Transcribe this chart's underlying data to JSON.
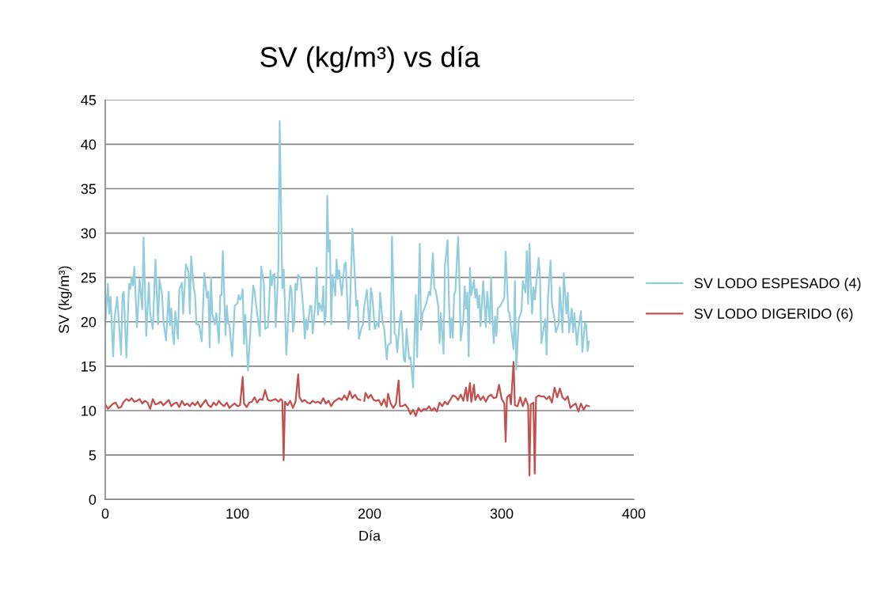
{
  "chart_data": {
    "type": "line",
    "title": "SV (kg/m³) vs día",
    "xlabel": "Día",
    "ylabel": "SV (kg/m³)",
    "xlim": [
      0,
      400
    ],
    "xticks": [
      0,
      100,
      200,
      300,
      400
    ],
    "ylim": [
      0,
      45
    ],
    "yticks": [
      0,
      5,
      10,
      15,
      20,
      25,
      30,
      35,
      40,
      45
    ],
    "grid": "y",
    "legend": "right",
    "series": [
      {
        "name": "SV LODO ESPESADO (4)",
        "color": "#93cddd",
        "x": [
          0,
          2,
          3,
          4,
          6,
          7,
          9,
          12,
          13,
          14,
          16,
          18,
          19,
          20,
          21,
          22,
          24,
          26,
          28,
          29,
          31,
          33,
          34,
          36,
          38,
          40,
          41,
          43,
          44,
          46,
          48,
          49,
          50,
          51,
          52,
          53,
          55,
          56,
          58,
          59,
          61,
          63,
          64,
          65,
          67,
          68,
          69,
          71,
          73,
          75,
          77,
          78,
          79,
          80,
          81,
          83,
          84,
          85,
          86,
          87,
          88,
          89,
          91,
          92,
          93,
          94,
          96,
          98,
          100,
          101,
          102,
          103,
          104,
          105,
          106,
          108,
          110,
          112,
          113,
          115,
          117,
          118,
          120,
          121,
          123,
          124,
          125,
          126,
          127,
          128,
          129,
          130,
          131,
          132,
          134,
          135,
          136,
          137,
          139,
          140,
          141,
          142,
          143,
          144,
          145,
          146,
          148,
          150,
          151,
          152,
          153,
          155,
          156,
          157,
          159,
          160,
          161,
          162,
          164,
          165,
          166,
          167,
          168,
          169,
          170,
          171,
          172,
          174,
          175,
          176,
          177,
          179,
          181,
          182,
          184,
          185,
          187,
          188,
          190,
          191,
          192,
          194,
          195,
          196,
          198,
          200,
          201,
          202,
          204,
          206,
          207,
          208,
          210,
          211,
          213,
          214,
          216,
          217,
          219,
          220,
          221,
          223,
          224,
          226,
          227,
          228,
          230,
          231,
          233,
          234,
          235,
          236,
          238,
          239,
          240,
          243,
          245,
          246,
          248,
          249,
          250,
          252,
          253,
          254,
          256,
          257,
          259,
          260,
          261,
          262,
          263,
          264,
          265,
          267,
          268,
          269,
          271,
          272,
          273,
          274,
          275,
          276,
          277,
          279,
          280,
          281,
          282,
          283,
          284,
          286,
          288,
          289,
          291,
          292,
          293,
          294,
          295,
          296,
          297,
          299,
          300,
          302,
          303,
          305,
          306,
          307,
          309,
          310,
          311,
          313,
          315,
          316,
          318,
          319,
          320,
          321,
          322,
          323,
          324,
          325,
          328,
          329,
          330,
          332,
          333,
          334,
          335,
          337,
          338,
          340,
          341,
          343,
          344,
          346,
          347,
          349,
          350,
          351,
          353,
          354,
          355,
          357,
          358,
          360,
          361,
          363,
          364,
          365,
          366
        ],
        "values": [
          19.6,
          24.3,
          20.9,
          22.8,
          16.1,
          20.3,
          22.8,
          16.3,
          23,
          23.4,
          16,
          24.3,
          23.7,
          25,
          24.1,
          26.2,
          19.4,
          24.8,
          21.4,
          29.5,
          18.4,
          24.4,
          20.9,
          19.2,
          27,
          19.7,
          24.8,
          23.1,
          20.1,
          17.9,
          23.4,
          19.6,
          21.5,
          18.7,
          17.5,
          21.2,
          18.1,
          23.6,
          24.4,
          20.9,
          26.5,
          25.6,
          20.9,
          27.4,
          23.8,
          23,
          19.7,
          19.7,
          17.8,
          25.5,
          22.7,
          23.4,
          17.1,
          25,
          20.9,
          19.7,
          21,
          19.4,
          17.6,
          23,
          23,
          28,
          18.5,
          21.8,
          19.8,
          19.7,
          16.1,
          21.8,
          22.1,
          23,
          22.5,
          22.7,
          23.7,
          17.5,
          20.8,
          14.5,
          19.4,
          24.1,
          23.4,
          20.9,
          18.4,
          26.2,
          24.4,
          19.2,
          19.4,
          21.8,
          25.8,
          24.1,
          25.3,
          25.4,
          19.4,
          22.7,
          26.2,
          42.6,
          23.8,
          25.9,
          21.8,
          16.3,
          21.8,
          24.1,
          23.6,
          18.9,
          20,
          24.3,
          23.6,
          25.3,
          24.8,
          21.2,
          18.1,
          20.3,
          19.1,
          21.8,
          21.8,
          18.7,
          22.1,
          26.1,
          20.8,
          22.1,
          21.2,
          24,
          19.7,
          20.9,
          34.2,
          27.9,
          29.2,
          19.7,
          25.3,
          23,
          27,
          24.8,
          25.8,
          23,
          26.5,
          26.7,
          19.2,
          20.6,
          30.5,
          27.7,
          21.8,
          22.4,
          18.1,
          19.4,
          19.7,
          21.8,
          23.6,
          19.1,
          23.8,
          23,
          19.2,
          20,
          19.4,
          23.3,
          19.7,
          19.4,
          15.8,
          17.4,
          17.6,
          29.6,
          18.7,
          18.5,
          16.6,
          20.3,
          21.2,
          15.7,
          15.5,
          19.2,
          15.8,
          16,
          12.6,
          18.2,
          23,
          16,
          28.8,
          19.1,
          20.9,
          22.1,
          23.4,
          23,
          27.7,
          23.8,
          23.6,
          21.8,
          17.6,
          21,
          16.4,
          26.2,
          29.2,
          23,
          18.2,
          20.4,
          18.2,
          23,
          23.5,
          29.6,
          24.8,
          17.9,
          20.3,
          24,
          21.5,
          23.3,
          16.1,
          26.1,
          23,
          24.7,
          22.7,
          23.7,
          21.6,
          23,
          19.5,
          24.6,
          19.4,
          23.4,
          19.8,
          25,
          20.3,
          17.6,
          20.6,
          18.4,
          21.5,
          21.8,
          22.1,
          22.7,
          27.9,
          21.2,
          20.9,
          19.4,
          16.9,
          24.6,
          14.6,
          20.4,
          21.2,
          24.6,
          23.3,
          28,
          22,
          28.8,
          24.2,
          20.9,
          23.9,
          22.5,
          27.2,
          25,
          17.6,
          19.5,
          20.3,
          16.3,
          22.7,
          26.9,
          22.1,
          20.3,
          18.8,
          19.7,
          23.9,
          18.8,
          25.5,
          20.9,
          23.3,
          18.8,
          21.5,
          18.8,
          21,
          17.4,
          19.1,
          21.2,
          16.6,
          19.9,
          19.6,
          16.7,
          17.8
        ]
      },
      {
        "name": "SV LODO DIGERIDO (6)",
        "color": "#c0504d",
        "x": [
          0,
          2,
          4,
          6,
          8,
          10,
          12,
          14,
          16,
          18,
          20,
          22,
          24,
          26,
          28,
          30,
          32,
          34,
          36,
          38,
          40,
          42,
          44,
          46,
          48,
          50,
          52,
          54,
          56,
          58,
          60,
          62,
          64,
          66,
          68,
          70,
          72,
          74,
          76,
          78,
          80,
          82,
          84,
          86,
          88,
          90,
          92,
          94,
          96,
          98,
          100,
          102,
          104,
          105,
          107,
          109,
          111,
          113,
          115,
          117,
          119,
          121,
          123,
          125,
          127,
          129,
          131,
          133,
          134,
          135,
          136,
          138,
          140,
          142,
          144,
          146,
          147,
          149,
          151,
          153,
          155,
          157,
          159,
          161,
          163,
          165,
          167,
          169,
          171,
          173,
          175,
          177,
          179,
          181,
          183,
          185,
          187,
          189,
          191,
          193,
          194,
          196,
          197,
          199,
          201,
          203,
          205,
          207,
          209,
          211,
          213,
          214,
          216,
          218,
          220,
          222,
          223,
          225,
          227,
          229,
          231,
          233,
          235,
          237,
          239,
          241,
          243,
          245,
          247,
          249,
          251,
          253,
          255,
          257,
          259,
          261,
          263,
          265,
          267,
          269,
          271,
          273,
          274,
          276,
          277,
          279,
          280,
          282,
          284,
          286,
          288,
          290,
          292,
          294,
          296,
          298,
          300,
          302,
          303,
          304,
          306,
          307,
          309,
          310,
          312,
          314,
          316,
          318,
          320,
          321,
          322,
          324,
          325,
          326,
          328,
          330,
          332,
          334,
          336,
          338,
          340,
          342,
          344,
          346,
          348,
          350,
          352,
          354,
          356,
          358,
          360,
          362,
          364,
          366
        ],
        "values": [
          10.7,
          10.2,
          10.5,
          10.8,
          10.9,
          10.3,
          10.4,
          11.0,
          11.3,
          11.1,
          11.4,
          11.0,
          11.1,
          11.3,
          10.8,
          11.1,
          10.9,
          10.2,
          11.3,
          10.7,
          10.8,
          11.0,
          10.6,
          10.9,
          11.2,
          10.5,
          10.8,
          10.9,
          10.4,
          11.1,
          10.6,
          10.8,
          10.5,
          10.9,
          10.6,
          11.0,
          10.4,
          10.8,
          11.2,
          10.6,
          10.4,
          10.9,
          10.6,
          11.1,
          10.7,
          10.5,
          10.9,
          10.3,
          10.6,
          10.8,
          10.5,
          10.6,
          13.8,
          10.8,
          10.4,
          10.9,
          11.0,
          11.5,
          10.9,
          11.3,
          11.2,
          12.3,
          11.2,
          11.1,
          11.2,
          11.3,
          11.0,
          11.3,
          11.1,
          4.4,
          11.0,
          10.6,
          11.1,
          10.3,
          11.0,
          14.1,
          11.5,
          11.0,
          11.2,
          10.9,
          10.8,
          11.1,
          10.9,
          11.0,
          10.8,
          11.4,
          10.8,
          11.1,
          10.5,
          11.0,
          11.2,
          11.4,
          11.2,
          11.7,
          11.2,
          12.2,
          11.4,
          11.8,
          11.3,
          11.2,
          null,
          11.1,
          12.0,
          11.4,
          11.8,
          11.2,
          11.1,
          11.2,
          10.6,
          11.3,
          10.4,
          11.9,
          10.8,
          10.3,
          10.8,
          13.4,
          10.5,
          10.5,
          10.7,
          10.3,
          9.6,
          10.1,
          9.4,
          10.3,
          9.9,
          10.2,
          10.1,
          10.5,
          10.0,
          10.3,
          9.9,
          10.9,
          10.5,
          11.0,
          10.7,
          11.2,
          11.7,
          11.6,
          11.2,
          11.8,
          11.1,
          12.6,
          11.1,
          13.1,
          11.0,
          12.9,
          11.2,
          11.8,
          11.2,
          11.6,
          11.0,
          11.6,
          11.8,
          11.4,
          11.5,
          12.9,
          11.3,
          10.8,
          6.5,
          11.5,
          11.8,
          10.7,
          15.5,
          10.6,
          10.5,
          11.5,
          10.5,
          11.4,
          10.6,
          2.7,
          10.7,
          10.9,
          2.9,
          11.5,
          11.7,
          11.6,
          11.6,
          11.3,
          11.6,
          10.9,
          12.6,
          11.5,
          12.5,
          11.5,
          11.2,
          11.6,
          10.3,
          10.6,
          10.8,
          9.9,
          10.8,
          10.1,
          10.6,
          10.5
        ]
      }
    ]
  }
}
